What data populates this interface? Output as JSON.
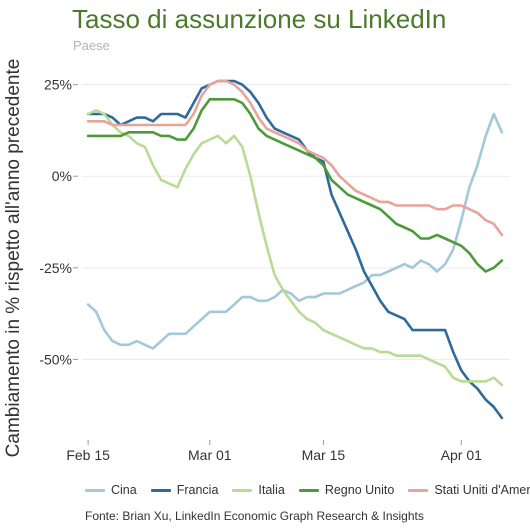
{
  "chart_data": {
    "type": "line",
    "title": "Tasso di assunzione su LinkedIn",
    "subtitle": "Paese",
    "ylabel": "Cambiamento in % rispetto all'anno precedente",
    "xlabel": "",
    "source": "Fonte: Brian Xu, LinkedIn Economic Graph Research & Insights",
    "x_ticks": [
      "Feb 15",
      "Mar 01",
      "Mar 15",
      "Apr 01"
    ],
    "x_tick_days": [
      0,
      15,
      29,
      46
    ],
    "y_ticks": [
      "25%",
      "0%",
      "-25%",
      "-50%"
    ],
    "y_tick_values": [
      25,
      0,
      -25,
      -50
    ],
    "ylim": [
      -72,
      29
    ],
    "xlim": [
      -1,
      52
    ],
    "grid": "horizontal",
    "legend_position": "bottom",
    "x_days": [
      0,
      1,
      2,
      3,
      4,
      5,
      6,
      7,
      8,
      9,
      10,
      11,
      12,
      13,
      14,
      15,
      16,
      17,
      18,
      19,
      20,
      21,
      22,
      23,
      24,
      25,
      26,
      27,
      28,
      29,
      30,
      31,
      32,
      33,
      34,
      35,
      36,
      37,
      38,
      39,
      40,
      41,
      42,
      43,
      44,
      45,
      46,
      47,
      48,
      49,
      50,
      51
    ],
    "series": [
      {
        "name": "Cina",
        "color": "#a3c8da",
        "values": [
          -35,
          -37,
          -42,
          -45,
          -46,
          -46,
          -45,
          -46,
          -47,
          -45,
          -43,
          -43,
          -43,
          -41,
          -39,
          -37,
          -37,
          -37,
          -35,
          -33,
          -33,
          -34,
          -34,
          -33,
          -31,
          -32,
          -34,
          -33,
          -33,
          -32,
          -32,
          -32,
          -31,
          -30,
          -29,
          -27,
          -27,
          -26,
          -25,
          -24,
          -25,
          -23,
          -24,
          -26,
          -24,
          -20,
          -12,
          -3,
          3,
          11,
          17,
          12
        ]
      },
      {
        "name": "Francia",
        "color": "#2e6a9c",
        "values": [
          17,
          17,
          17,
          16,
          14,
          15,
          16,
          16,
          15,
          17,
          17,
          17,
          16,
          20,
          24,
          25,
          26,
          26,
          26,
          25,
          23,
          20,
          16,
          13,
          12,
          11,
          10,
          7,
          5,
          4,
          -5,
          -10,
          -15,
          -20,
          -26,
          -30,
          -34,
          -37,
          -38,
          -39,
          -42,
          -42,
          -42,
          -42,
          -42,
          -48,
          -53,
          -56,
          -58,
          -61,
          -63,
          -66
        ]
      },
      {
        "name": "Italia",
        "color": "#b8db95",
        "values": [
          17,
          18,
          17,
          14,
          12,
          11,
          9,
          8,
          3,
          -1,
          -2,
          -3,
          2,
          6,
          9,
          10,
          11,
          9,
          11,
          8,
          0,
          -10,
          -19,
          -27,
          -31,
          -34,
          -37,
          -39,
          -40,
          -42,
          -43,
          -44,
          -45,
          -46,
          -47,
          -47,
          -48,
          -48,
          -49,
          -49,
          -49,
          -49,
          -50,
          -51,
          -52,
          -55,
          -56,
          -56,
          -56,
          -56,
          -55,
          -57
        ]
      },
      {
        "name": "Regno Unito",
        "color": "#4d9a38",
        "values": [
          11,
          11,
          11,
          11,
          11,
          12,
          12,
          12,
          12,
          11,
          11,
          10,
          10,
          13,
          18,
          21,
          21,
          21,
          21,
          20,
          17,
          13,
          11,
          10,
          9,
          8,
          7,
          6,
          5,
          3,
          -1,
          -3,
          -5,
          -6,
          -7,
          -8,
          -9,
          -11,
          -13,
          -14,
          -15,
          -17,
          -17,
          -16,
          -17,
          -18,
          -19,
          -21,
          -24,
          -26,
          -25,
          -23
        ]
      },
      {
        "name": "Stati Uniti d'America",
        "color": "#e8a39b",
        "values": [
          15,
          15,
          15,
          14,
          14,
          14,
          14,
          14,
          14,
          14,
          14,
          14,
          14,
          17,
          22,
          25,
          26,
          26,
          25,
          23,
          20,
          16,
          13,
          12,
          11,
          10,
          9,
          7,
          6,
          5,
          3,
          0,
          -2,
          -4,
          -5,
          -6,
          -7,
          -7,
          -8,
          -8,
          -8,
          -8,
          -8,
          -9,
          -9,
          -8,
          -8,
          -9,
          -10,
          -12,
          -13,
          -16
        ]
      }
    ]
  },
  "legend": {
    "items": [
      "Cina",
      "Francia",
      "Italia",
      "Regno Unito",
      "Stati Uniti d'America"
    ]
  }
}
